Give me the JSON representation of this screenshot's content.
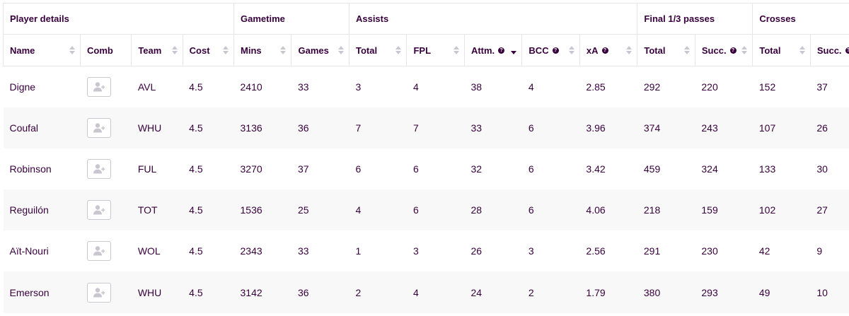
{
  "groups": [
    {
      "label": "Player details",
      "span": 4
    },
    {
      "label": "Gametime",
      "span": 2
    },
    {
      "label": "Assists",
      "span": 5
    },
    {
      "label": "Final 1/3 passes",
      "span": 2
    },
    {
      "label": "Crosses",
      "span": 2
    }
  ],
  "columns": [
    {
      "label": "Name",
      "sortable": true,
      "help": false,
      "sort": "none"
    },
    {
      "label": "Comb",
      "sortable": false,
      "help": false,
      "sort": "none"
    },
    {
      "label": "Team",
      "sortable": true,
      "help": false,
      "sort": "none"
    },
    {
      "label": "Cost",
      "sortable": true,
      "help": false,
      "sort": "none"
    },
    {
      "label": "Mins",
      "sortable": true,
      "help": false,
      "sort": "none"
    },
    {
      "label": "Games",
      "sortable": true,
      "help": false,
      "sort": "none"
    },
    {
      "label": "Total",
      "sortable": true,
      "help": false,
      "sort": "none"
    },
    {
      "label": "FPL",
      "sortable": true,
      "help": false,
      "sort": "none"
    },
    {
      "label": "Attm.",
      "sortable": true,
      "help": true,
      "sort": "desc"
    },
    {
      "label": "BCC",
      "sortable": true,
      "help": true,
      "sort": "none"
    },
    {
      "label": "xA",
      "sortable": true,
      "help": true,
      "sort": "none"
    },
    {
      "label": "Total",
      "sortable": true,
      "help": false,
      "sort": "none"
    },
    {
      "label": "Succ.",
      "sortable": true,
      "help": true,
      "sort": "none"
    },
    {
      "label": "Total",
      "sortable": true,
      "help": false,
      "sort": "none"
    },
    {
      "label": "Succ.",
      "sortable": true,
      "help": true,
      "sort": "none"
    }
  ],
  "rows": [
    {
      "name": "Digne",
      "team": "AVL",
      "cost": "4.5",
      "mins": "2410",
      "games": "33",
      "assists_total": "3",
      "fpl": "4",
      "attm": "38",
      "bcc": "4",
      "xa": "2.85",
      "f3_total": "292",
      "f3_succ": "220",
      "cross_total": "152",
      "cross_succ": "37"
    },
    {
      "name": "Coufal",
      "team": "WHU",
      "cost": "4.5",
      "mins": "3136",
      "games": "36",
      "assists_total": "7",
      "fpl": "7",
      "attm": "33",
      "bcc": "6",
      "xa": "3.96",
      "f3_total": "374",
      "f3_succ": "243",
      "cross_total": "107",
      "cross_succ": "26"
    },
    {
      "name": "Robinson",
      "team": "FUL",
      "cost": "4.5",
      "mins": "3270",
      "games": "37",
      "assists_total": "6",
      "fpl": "6",
      "attm": "32",
      "bcc": "6",
      "xa": "3.42",
      "f3_total": "459",
      "f3_succ": "324",
      "cross_total": "133",
      "cross_succ": "30"
    },
    {
      "name": "Reguilón",
      "team": "TOT",
      "cost": "4.5",
      "mins": "1536",
      "games": "25",
      "assists_total": "4",
      "fpl": "6",
      "attm": "28",
      "bcc": "6",
      "xa": "4.06",
      "f3_total": "218",
      "f3_succ": "159",
      "cross_total": "102",
      "cross_succ": "27"
    },
    {
      "name": "Aït-Nouri",
      "team": "WOL",
      "cost": "4.5",
      "mins": "2343",
      "games": "33",
      "assists_total": "1",
      "fpl": "3",
      "attm": "26",
      "bcc": "3",
      "xa": "2.56",
      "f3_total": "291",
      "f3_succ": "230",
      "cross_total": "42",
      "cross_succ": "9"
    },
    {
      "name": "Emerson",
      "team": "WHU",
      "cost": "4.5",
      "mins": "3142",
      "games": "36",
      "assists_total": "2",
      "fpl": "4",
      "attm": "24",
      "bcc": "2",
      "xa": "1.79",
      "f3_total": "380",
      "f3_succ": "293",
      "cross_total": "49",
      "cross_succ": "10"
    }
  ],
  "icons": {
    "comb": "add-to-comparison-icon",
    "help": "question-mark-icon",
    "sort": "sort-arrows-icon"
  },
  "colors": {
    "text": "#37003c",
    "stripe": "#f8f8f8",
    "border": "#e6e6ea",
    "icon_muted": "#c9c6cf"
  }
}
